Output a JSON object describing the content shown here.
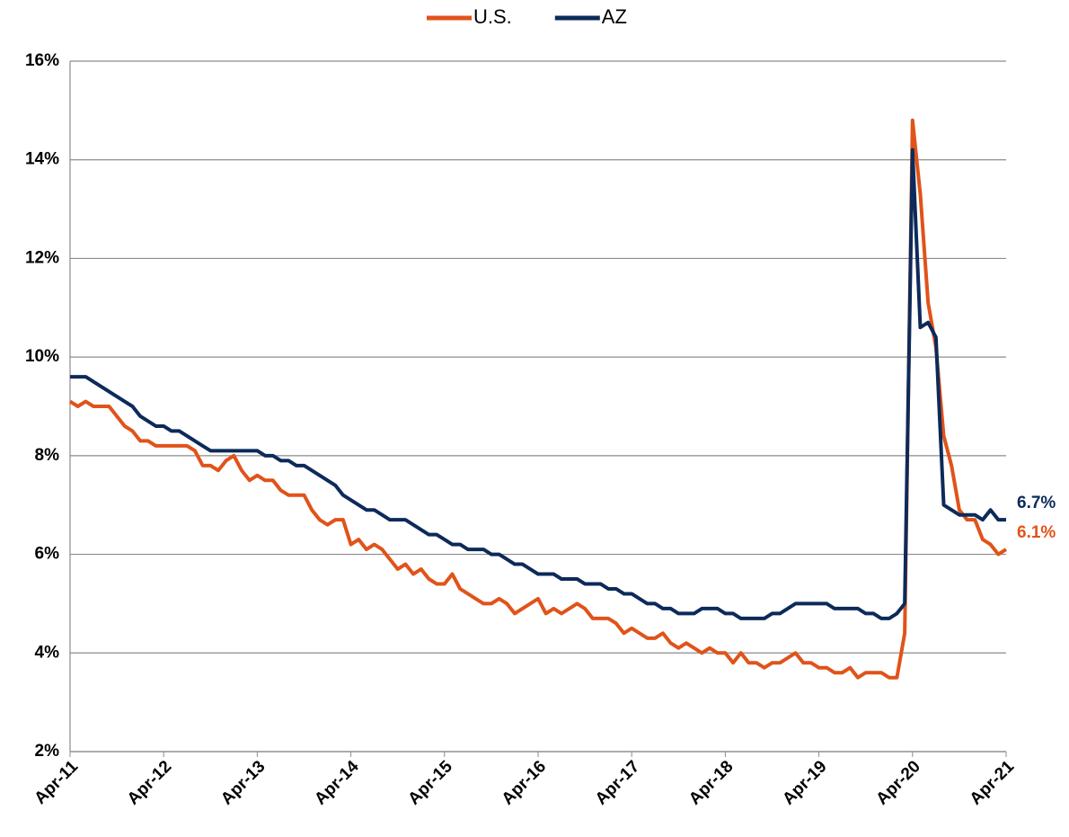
{
  "chart_data": {
    "type": "line",
    "categories": [
      "Apr-11",
      null,
      null,
      null,
      null,
      null,
      null,
      null,
      null,
      null,
      null,
      null,
      "Apr-12",
      null,
      null,
      null,
      null,
      null,
      null,
      null,
      null,
      null,
      null,
      null,
      "Apr-13",
      null,
      null,
      null,
      null,
      null,
      null,
      null,
      null,
      null,
      null,
      null,
      "Apr-14",
      null,
      null,
      null,
      null,
      null,
      null,
      null,
      null,
      null,
      null,
      null,
      "Apr-15",
      null,
      null,
      null,
      null,
      null,
      null,
      null,
      null,
      null,
      null,
      null,
      "Apr-16",
      null,
      null,
      null,
      null,
      null,
      null,
      null,
      null,
      null,
      null,
      null,
      "Apr-17",
      null,
      null,
      null,
      null,
      null,
      null,
      null,
      null,
      null,
      null,
      null,
      "Apr-18",
      null,
      null,
      null,
      null,
      null,
      null,
      null,
      null,
      null,
      null,
      null,
      "Apr-19",
      null,
      null,
      null,
      null,
      null,
      null,
      null,
      null,
      null,
      null,
      null,
      "Apr-20",
      null,
      null,
      null,
      null,
      null,
      null,
      null,
      null,
      null,
      null,
      null,
      "Apr-21"
    ],
    "series": [
      {
        "name": "U.S.",
        "color": "#e0531a",
        "values": [
          9.1,
          9.0,
          9.1,
          9.0,
          9.0,
          9.0,
          8.8,
          8.6,
          8.5,
          8.3,
          8.3,
          8.2,
          8.2,
          8.2,
          8.2,
          8.2,
          8.1,
          7.8,
          7.8,
          7.7,
          7.9,
          8.0,
          7.7,
          7.5,
          7.6,
          7.5,
          7.5,
          7.3,
          7.2,
          7.2,
          7.2,
          6.9,
          6.7,
          6.6,
          6.7,
          6.7,
          6.2,
          6.3,
          6.1,
          6.2,
          6.1,
          5.9,
          5.7,
          5.8,
          5.6,
          5.7,
          5.5,
          5.4,
          5.4,
          5.6,
          5.3,
          5.2,
          5.1,
          5.0,
          5.0,
          5.1,
          5.0,
          4.8,
          4.9,
          5.0,
          5.1,
          4.8,
          4.9,
          4.8,
          4.9,
          5.0,
          4.9,
          4.7,
          4.7,
          4.7,
          4.6,
          4.4,
          4.5,
          4.4,
          4.3,
          4.3,
          4.4,
          4.2,
          4.1,
          4.2,
          4.1,
          4.0,
          4.1,
          4.0,
          4.0,
          3.8,
          4.0,
          3.8,
          3.8,
          3.7,
          3.8,
          3.8,
          3.9,
          4.0,
          3.8,
          3.8,
          3.7,
          3.7,
          3.6,
          3.6,
          3.7,
          3.5,
          3.6,
          3.6,
          3.6,
          3.5,
          3.5,
          4.4,
          14.8,
          13.3,
          11.1,
          10.2,
          8.4,
          7.8,
          6.9,
          6.7,
          6.7,
          6.3,
          6.2,
          6.0,
          6.1
        ],
        "value_labels": [
          null,
          null,
          null,
          null,
          null,
          null,
          null,
          null,
          null,
          null,
          null,
          null,
          null,
          null,
          null,
          null,
          null,
          null,
          null,
          null,
          null,
          null,
          null,
          null,
          null,
          null,
          null,
          null,
          null,
          null,
          null,
          null,
          null,
          null,
          null,
          null,
          null,
          null,
          null,
          null,
          null,
          null,
          null,
          null,
          null,
          null,
          null,
          null,
          null,
          null,
          null,
          null,
          null,
          null,
          null,
          null,
          null,
          null,
          null,
          null,
          null,
          null,
          null,
          null,
          null,
          null,
          null,
          null,
          null,
          null,
          null,
          null,
          null,
          null,
          null,
          null,
          null,
          null,
          null,
          null,
          null,
          null,
          null,
          null,
          null,
          null,
          null,
          null,
          null,
          null,
          null,
          null,
          null,
          null,
          null,
          null,
          null,
          null,
          null,
          null,
          null,
          null,
          null,
          null,
          null,
          null,
          null,
          null,
          null,
          null,
          null,
          null,
          null,
          null,
          null,
          null,
          null,
          null,
          null,
          null,
          "6.1%"
        ]
      },
      {
        "name": "AZ",
        "color": "#0c2a5a",
        "values": [
          9.6,
          9.6,
          9.6,
          9.5,
          9.4,
          9.3,
          9.2,
          9.1,
          9.0,
          8.8,
          8.7,
          8.6,
          8.6,
          8.5,
          8.5,
          8.4,
          8.3,
          8.2,
          8.1,
          8.1,
          8.1,
          8.1,
          8.1,
          8.1,
          8.1,
          8.0,
          8.0,
          7.9,
          7.9,
          7.8,
          7.8,
          7.7,
          7.6,
          7.5,
          7.4,
          7.2,
          7.1,
          7.0,
          6.9,
          6.9,
          6.8,
          6.7,
          6.7,
          6.7,
          6.6,
          6.5,
          6.4,
          6.4,
          6.3,
          6.2,
          6.2,
          6.1,
          6.1,
          6.1,
          6.0,
          6.0,
          5.9,
          5.8,
          5.8,
          5.7,
          5.6,
          5.6,
          5.6,
          5.5,
          5.5,
          5.5,
          5.4,
          5.4,
          5.4,
          5.3,
          5.3,
          5.2,
          5.2,
          5.1,
          5.0,
          5.0,
          4.9,
          4.9,
          4.8,
          4.8,
          4.8,
          4.9,
          4.9,
          4.9,
          4.8,
          4.8,
          4.7,
          4.7,
          4.7,
          4.7,
          4.8,
          4.8,
          4.9,
          5.0,
          5.0,
          5.0,
          5.0,
          5.0,
          4.9,
          4.9,
          4.9,
          4.9,
          4.8,
          4.8,
          4.7,
          4.7,
          4.8,
          5.0,
          14.2,
          10.6,
          10.7,
          10.4,
          7.0,
          6.9,
          6.8,
          6.8,
          6.8,
          6.7,
          6.9,
          6.7,
          6.7
        ],
        "value_labels": [
          null,
          null,
          null,
          null,
          null,
          null,
          null,
          null,
          null,
          null,
          null,
          null,
          null,
          null,
          null,
          null,
          null,
          null,
          null,
          null,
          null,
          null,
          null,
          null,
          null,
          null,
          null,
          null,
          null,
          null,
          null,
          null,
          null,
          null,
          null,
          null,
          null,
          null,
          null,
          null,
          null,
          null,
          null,
          null,
          null,
          null,
          null,
          null,
          null,
          null,
          null,
          null,
          null,
          null,
          null,
          null,
          null,
          null,
          null,
          null,
          null,
          null,
          null,
          null,
          null,
          null,
          null,
          null,
          null,
          null,
          null,
          null,
          null,
          null,
          null,
          null,
          null,
          null,
          null,
          null,
          null,
          null,
          null,
          null,
          null,
          null,
          null,
          null,
          null,
          null,
          null,
          null,
          null,
          null,
          null,
          null,
          null,
          null,
          null,
          null,
          null,
          null,
          null,
          null,
          null,
          null,
          null,
          null,
          null,
          null,
          null,
          null,
          null,
          null,
          null,
          null,
          null,
          null,
          null,
          null,
          "6.7%"
        ]
      }
    ],
    "ylim": [
      2,
      16
    ],
    "yticks": [
      {
        "value": 2,
        "label": "2%"
      },
      {
        "value": 4,
        "label": "4%"
      },
      {
        "value": 6,
        "label": "6%"
      },
      {
        "value": 8,
        "label": "8%"
      },
      {
        "value": 10,
        "label": "10%"
      },
      {
        "value": 12,
        "label": "12%"
      },
      {
        "value": 14,
        "label": "14%"
      },
      {
        "value": 16,
        "label": "16%"
      }
    ],
    "grid": true,
    "legend": "top"
  }
}
